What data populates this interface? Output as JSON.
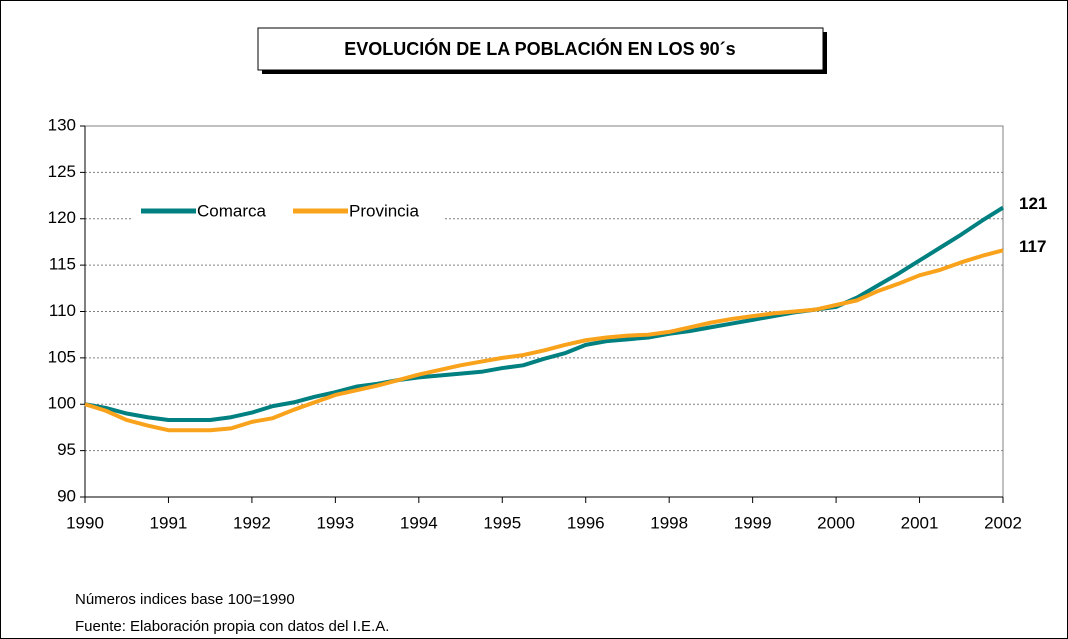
{
  "chart_data": {
    "type": "line",
    "title": "EVOLUCIÓN DE LA POBLACIÓN EN LOS 90´s",
    "categories": [
      "1990",
      null,
      null,
      null,
      "1991",
      null,
      null,
      null,
      "1992",
      null,
      null,
      null,
      "1993",
      null,
      null,
      null,
      "1994",
      null,
      null,
      null,
      "1995",
      null,
      null,
      null,
      "1996",
      null,
      null,
      null,
      "1998",
      null,
      null,
      null,
      "1999",
      null,
      null,
      null,
      "2000",
      null,
      null,
      null,
      "2001",
      null,
      null,
      null,
      "2002"
    ],
    "series": [
      {
        "name": "Comarca",
        "color": "#008080",
        "values": [
          100,
          99.6,
          99.0,
          98.6,
          98.3,
          98.3,
          98.3,
          98.6,
          99.1,
          99.8,
          100.2,
          100.8,
          101.3,
          101.9,
          102.2,
          102.6,
          102.9,
          103.1,
          103.3,
          103.5,
          103.9,
          104.2,
          104.9,
          105.5,
          106.4,
          106.8,
          107.0,
          107.2,
          107.6,
          107.9,
          108.3,
          108.7,
          109.1,
          109.5,
          109.9,
          110.2,
          110.5,
          111.5,
          112.8,
          114.1,
          115.5,
          116.9,
          118.3,
          119.8,
          121.2
        ],
        "value_labels": [
          null,
          null,
          null,
          null,
          null,
          null,
          null,
          null,
          null,
          null,
          null,
          null,
          null,
          null,
          null,
          null,
          null,
          null,
          null,
          null,
          null,
          null,
          null,
          null,
          null,
          null,
          null,
          null,
          null,
          null,
          null,
          null,
          null,
          null,
          null,
          null,
          null,
          null,
          null,
          null,
          null,
          null,
          null,
          null,
          "121"
        ]
      },
      {
        "name": "Provincia",
        "color": "#F9A21B",
        "values": [
          100,
          99.3,
          98.3,
          97.7,
          97.2,
          97.2,
          97.2,
          97.4,
          98.1,
          98.5,
          99.4,
          100.2,
          101.0,
          101.5,
          102.0,
          102.6,
          103.2,
          103.7,
          104.2,
          104.6,
          105.0,
          105.3,
          105.8,
          106.4,
          106.9,
          107.2,
          107.4,
          107.5,
          107.8,
          108.3,
          108.8,
          109.2,
          109.5,
          109.8,
          110.0,
          110.2,
          110.7,
          111.2,
          112.2,
          113.0,
          113.9,
          114.5,
          115.3,
          116.0,
          116.6
        ],
        "value_labels": [
          null,
          null,
          null,
          null,
          null,
          null,
          null,
          null,
          null,
          null,
          null,
          null,
          null,
          null,
          null,
          null,
          null,
          null,
          null,
          null,
          null,
          null,
          null,
          null,
          null,
          null,
          null,
          null,
          null,
          null,
          null,
          null,
          null,
          null,
          null,
          null,
          null,
          null,
          null,
          null,
          null,
          null,
          null,
          null,
          "117"
        ]
      }
    ],
    "ylim": [
      90,
      130
    ],
    "yticks": [
      90,
      95,
      100,
      105,
      110,
      115,
      120,
      125,
      130
    ],
    "grid": true,
    "legend": "upper-left",
    "notes": [
      "Números indices base 100=1990",
      "Fuente: Elaboración propia con datos del I.E.A."
    ]
  }
}
